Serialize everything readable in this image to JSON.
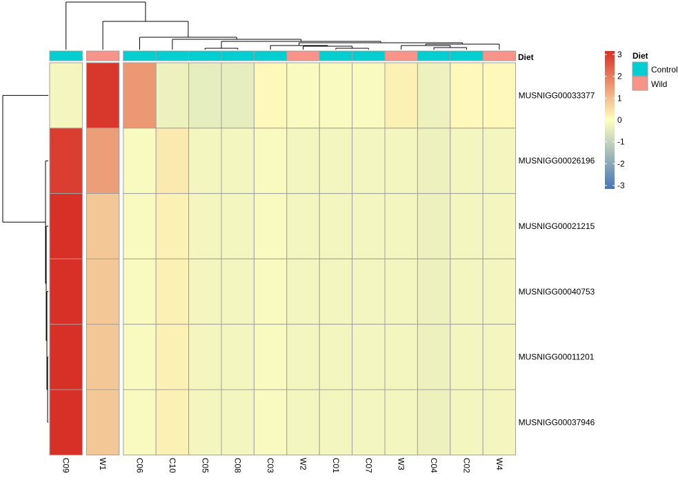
{
  "chart_data": {
    "type": "heatmap",
    "title": "",
    "columns": [
      "C09",
      "W1",
      "C06",
      "C10",
      "C05",
      "C08",
      "C03",
      "W2",
      "C01",
      "C07",
      "W3",
      "C04",
      "C02",
      "W4"
    ],
    "column_diet": [
      "Control",
      "Wild",
      "Control",
      "Control",
      "Control",
      "Control",
      "Control",
      "Wild",
      "Control",
      "Control",
      "Wild",
      "Control",
      "Control",
      "Wild"
    ],
    "rows": [
      "MUSNIGG00033377",
      "MUSNIGG00026196",
      "MUSNIGG00021215",
      "MUSNIGG00040753",
      "MUSNIGG00011201",
      "MUSNIGG00037946"
    ],
    "values": [
      [
        -0.2,
        2.9,
        1.5,
        -0.3,
        -0.4,
        -0.4,
        0.1,
        -0.1,
        -0.1,
        -0.1,
        0.2,
        -0.3,
        0.1,
        0.1
      ],
      [
        2.8,
        1.4,
        -0.1,
        0.3,
        -0.2,
        -0.2,
        -0.1,
        -0.2,
        -0.2,
        -0.2,
        -0.2,
        -0.3,
        -0.2,
        -0.2
      ],
      [
        3.0,
        0.8,
        -0.1,
        0.2,
        -0.2,
        -0.2,
        -0.1,
        -0.2,
        -0.2,
        -0.2,
        -0.2,
        -0.3,
        -0.2,
        -0.2
      ],
      [
        3.0,
        0.8,
        -0.1,
        0.2,
        -0.2,
        -0.2,
        -0.1,
        -0.2,
        -0.2,
        -0.2,
        -0.2,
        -0.3,
        -0.2,
        -0.2
      ],
      [
        3.0,
        0.8,
        -0.1,
        0.2,
        -0.2,
        -0.2,
        -0.1,
        -0.2,
        -0.2,
        -0.2,
        -0.2,
        -0.3,
        -0.2,
        -0.2
      ],
      [
        3.0,
        0.8,
        -0.1,
        0.2,
        -0.2,
        -0.2,
        -0.1,
        -0.2,
        -0.2,
        -0.2,
        -0.2,
        -0.3,
        -0.2,
        -0.2
      ]
    ],
    "scale": {
      "min": -3,
      "max": 3,
      "ticks": [
        3,
        2,
        1,
        0,
        -1,
        -2,
        -3
      ],
      "colors": [
        "#4575b4",
        "#ffffbf",
        "#d73027"
      ]
    },
    "annotation": {
      "title": "Diet",
      "levels": [
        {
          "name": "Control",
          "color": "#00ced1"
        },
        {
          "name": "Wild",
          "color": "#f8938a"
        }
      ]
    },
    "gaps": {
      "columns_after": [
        1,
        2
      ]
    },
    "cluster_rows": true,
    "cluster_columns": true,
    "legend_position": "right"
  }
}
